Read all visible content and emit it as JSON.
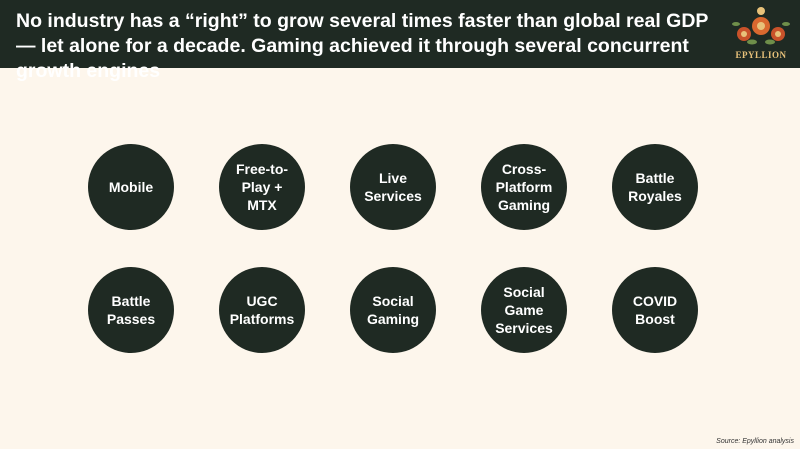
{
  "header": {
    "title": "No industry has a “right” to grow several times faster than global real GDP — let alone for a decade. Gaming achieved it through several concurrent growth engines",
    "logo": "EPYLLION"
  },
  "engines": [
    "Mobile",
    "Free-to-Play + MTX",
    "Live Services",
    "Cross-Platform Gaming",
    "Battle Royales",
    "Battle Passes",
    "UGC Platforms",
    "Social Gaming",
    "Social Game Services",
    "COVID Boost"
  ],
  "source": "Source: Epyllion analysis"
}
